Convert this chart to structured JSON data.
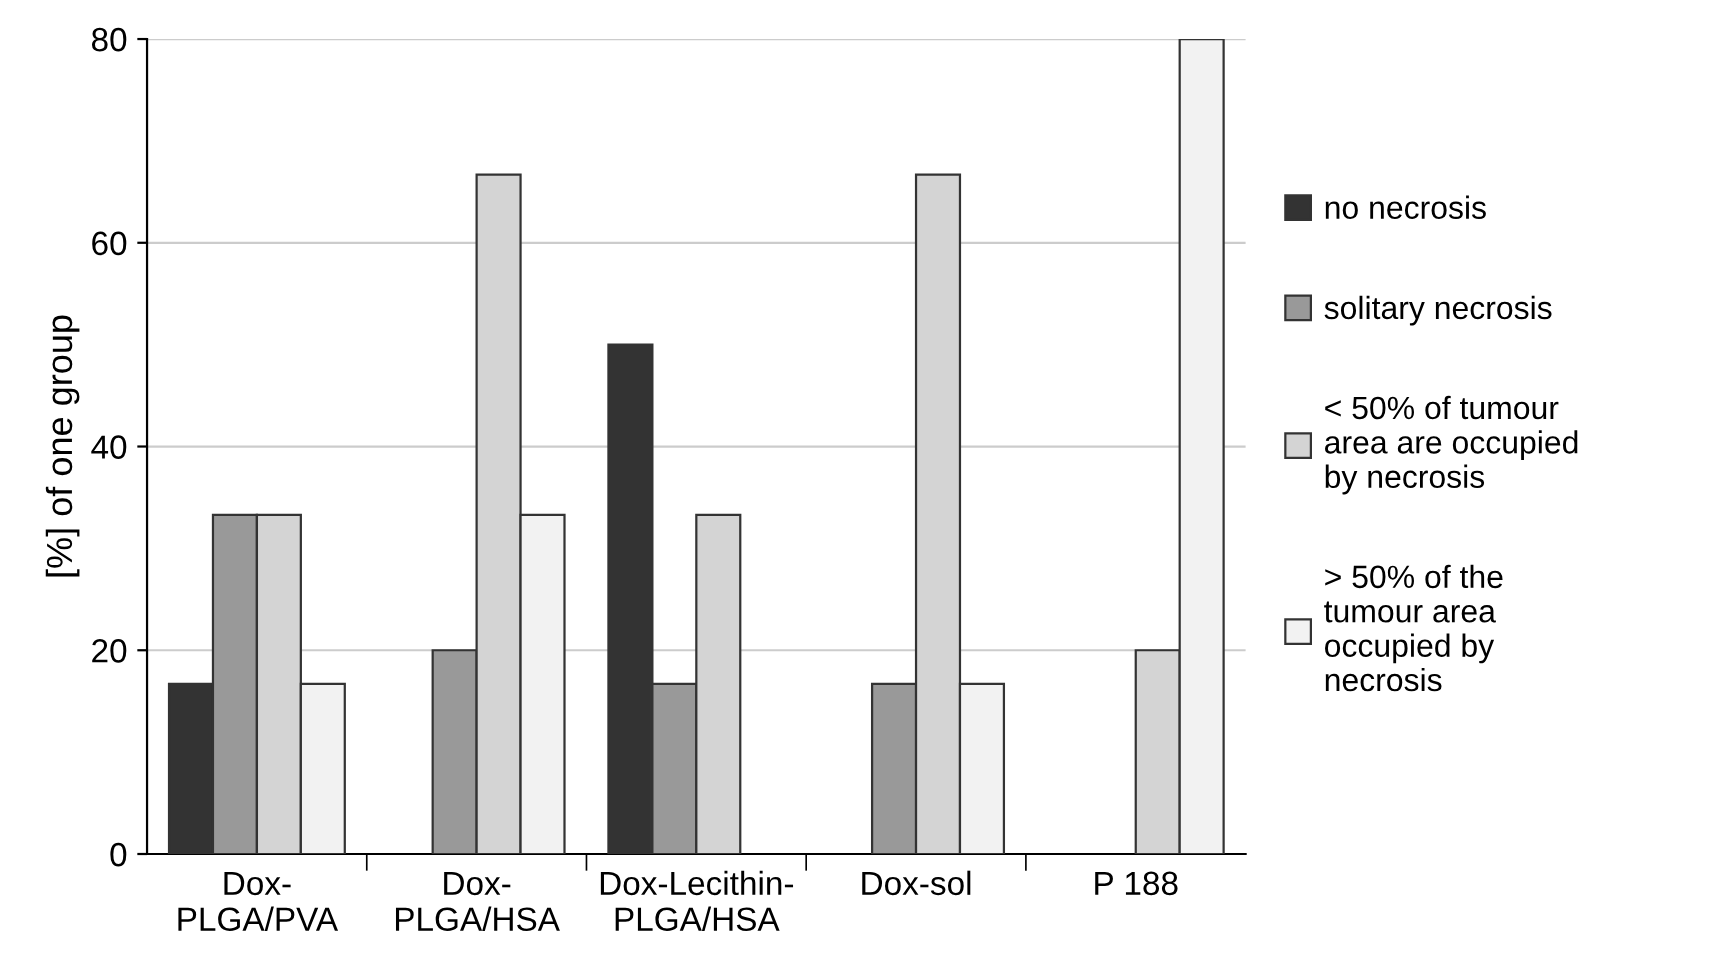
{
  "chart_data": {
    "type": "bar",
    "ylabel": "[%] of one group",
    "categories": [
      "Dox-\nPLGA/PVA",
      "Dox-\nPLGA/HSA",
      "Dox-Lecithin-\nPLGA/HSA",
      "Dox-sol",
      "P 188"
    ],
    "series": [
      {
        "name": "no necrosis",
        "color": "#333333",
        "values": [
          16.7,
          0,
          50,
          0,
          0
        ]
      },
      {
        "name": "solitary necrosis",
        "color": "#999999",
        "values": [
          33.3,
          20,
          16.7,
          16.7,
          0
        ]
      },
      {
        "name": "< 50% of tumour\narea are occupied\nby necrosis",
        "color": "#d4d4d4",
        "values": [
          33.3,
          66.7,
          33.3,
          66.7,
          20
        ]
      },
      {
        "name": "> 50% of the\ntumour area\noccupied by\nnecrosis",
        "color": "#f2f2f2",
        "values": [
          16.7,
          33.3,
          0,
          16.7,
          80
        ]
      }
    ],
    "ylim": [
      0,
      80
    ],
    "yticks": [
      0,
      20,
      40,
      60,
      80
    ],
    "grid": "y",
    "legend": "right"
  }
}
